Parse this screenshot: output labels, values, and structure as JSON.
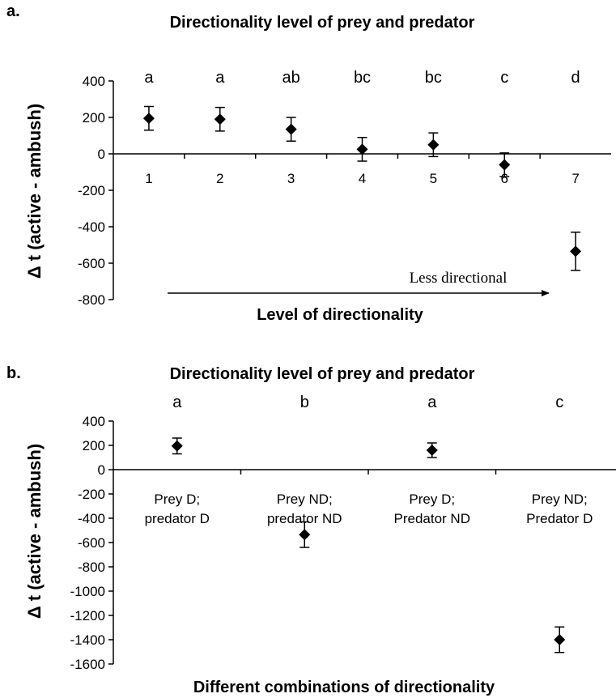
{
  "chart_data": [
    {
      "type": "scatter",
      "panel_label": "a.",
      "title": "Directionality level of prey and predator",
      "xlabel": "Level of directionality",
      "ylabel": "Δ t (active - ambush)",
      "categories": [
        "1",
        "2",
        "3",
        "4",
        "5",
        "6",
        "7"
      ],
      "values": [
        195,
        190,
        135,
        25,
        50,
        -60,
        -535
      ],
      "errors": [
        65,
        65,
        65,
        65,
        65,
        65,
        105
      ],
      "significance": [
        "a",
        "a",
        "ab",
        "bc",
        "bc",
        "c",
        "d"
      ],
      "yticks": [
        "400",
        "200",
        "0",
        "-200",
        "-400",
        "-600",
        "-800"
      ],
      "ylim": [
        -800,
        400
      ],
      "annotation": "Less directional",
      "grid": false,
      "marker": "diamond",
      "color": "#000000"
    },
    {
      "type": "scatter",
      "panel_label": "b.",
      "title": "Directionality level of prey and predator",
      "xlabel": "Different combinations of directionality",
      "ylabel": "Δ t (active - ambush)",
      "categories": [
        [
          "Prey D;",
          "predator D"
        ],
        [
          "Prey ND;",
          "predator ND"
        ],
        [
          "Prey D;",
          "Predator ND"
        ],
        [
          "Prey ND;",
          "Predator D"
        ]
      ],
      "values": [
        195,
        -535,
        160,
        -1400
      ],
      "errors": [
        65,
        105,
        60,
        105
      ],
      "significance": [
        "a",
        "b",
        "a",
        "c"
      ],
      "yticks": [
        "400",
        "200",
        "0",
        "-200",
        "-400",
        "-600",
        "-800",
        "-1000",
        "-1200",
        "-1400",
        "-1600"
      ],
      "ylim": [
        -1600,
        400
      ],
      "grid": false,
      "marker": "diamond",
      "color": "#000000"
    }
  ]
}
